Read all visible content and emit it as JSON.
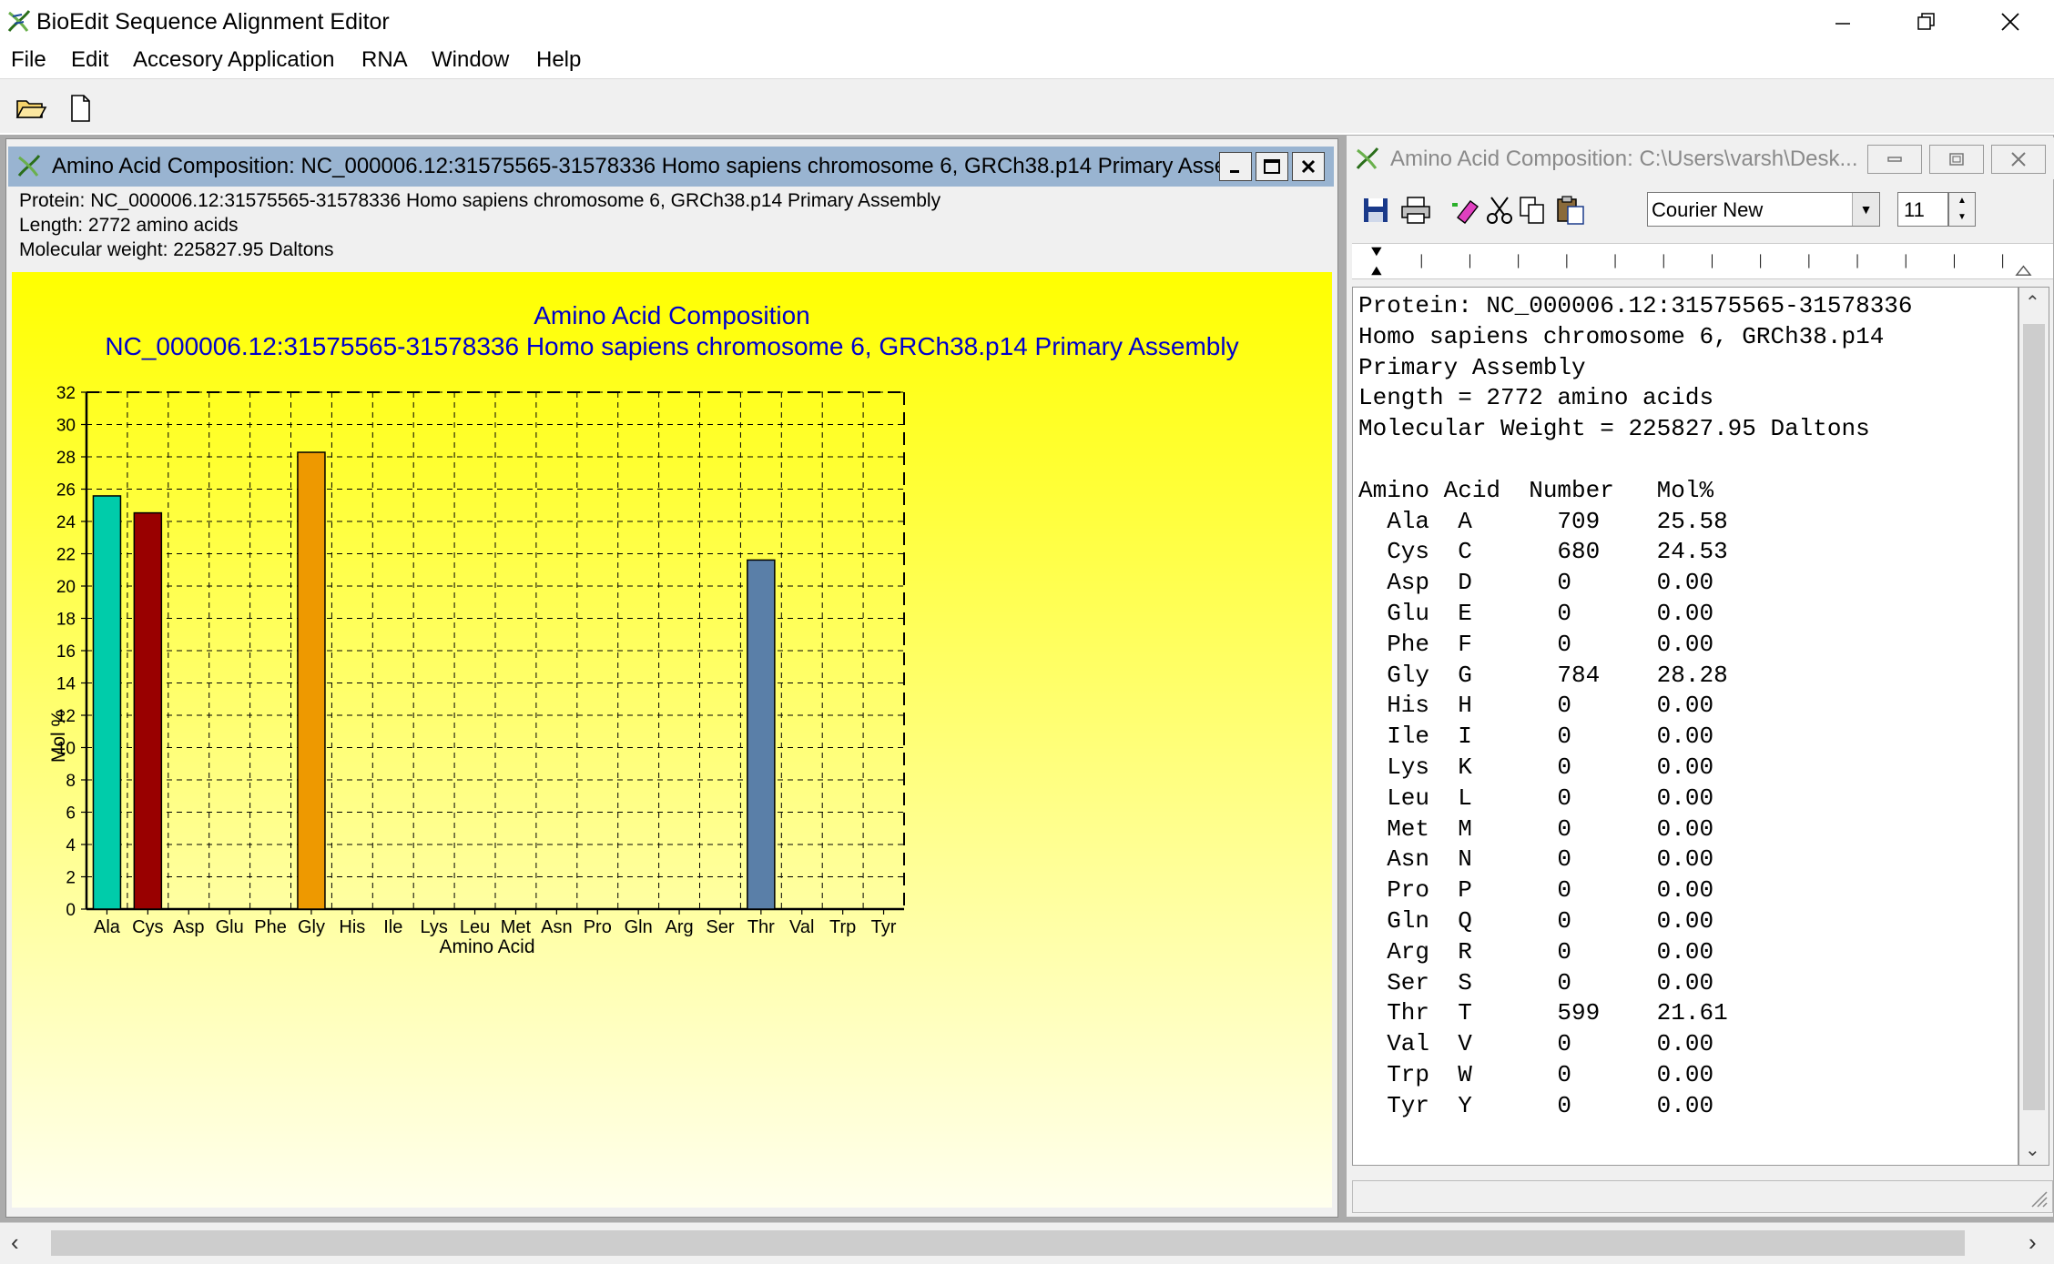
{
  "app": {
    "title": "BioEdit Sequence Alignment Editor"
  },
  "menu": [
    "File",
    "Edit",
    "Accesory Application",
    "RNA",
    "Window",
    "Help"
  ],
  "win1": {
    "title": "Amino Acid Composition: NC_000006.12:31575565-31578336 Homo sapiens chromosome 6, GRCh38.p14 Primary Asse...",
    "info_protein": "Protein: NC_000006.12:31575565-31578336 Homo sapiens chromosome 6, GRCh38.p14 Primary Assembly",
    "info_length": "Length: 2772 amino acids",
    "info_mw": "Molecular weight: 225827.95 Daltons"
  },
  "chart_data": {
    "type": "bar",
    "title": "Amino Acid Composition",
    "subtitle": "NC_000006.12:31575565-31578336 Homo sapiens chromosome 6, GRCh38.p14 Primary Assembly",
    "xlabel": "Amino Acid",
    "ylabel": "Mol %",
    "ylim": [
      0,
      32
    ],
    "yticks": [
      0,
      2,
      4,
      6,
      8,
      10,
      12,
      14,
      16,
      18,
      20,
      22,
      24,
      26,
      28,
      30,
      32
    ],
    "categories": [
      "Ala",
      "Cys",
      "Asp",
      "Glu",
      "Phe",
      "Gly",
      "His",
      "Ile",
      "Lys",
      "Leu",
      "Met",
      "Asn",
      "Pro",
      "Gln",
      "Arg",
      "Ser",
      "Thr",
      "Val",
      "Trp",
      "Tyr"
    ],
    "values": [
      25.58,
      24.53,
      0,
      0,
      0,
      28.28,
      0,
      0,
      0,
      0,
      0,
      0,
      0,
      0,
      0,
      0,
      21.61,
      0,
      0,
      0
    ],
    "colors": [
      "#00ccaa",
      "#990000",
      "#cccccc",
      "#cccccc",
      "#cccccc",
      "#ee9900",
      "#cccccc",
      "#cccccc",
      "#cccccc",
      "#cccccc",
      "#cccccc",
      "#cccccc",
      "#cccccc",
      "#cccccc",
      "#cccccc",
      "#cccccc",
      "#5a7fa8",
      "#cccccc",
      "#cccccc",
      "#cccccc"
    ],
    "grid": true
  },
  "win2": {
    "title": "Amino Acid Composition: C:\\Users\\varsh\\Desk...",
    "font": "Courier New",
    "font_size": "11",
    "report_lines": [
      "Protein: NC_000006.12:31575565-31578336",
      "Homo sapiens chromosome 6, GRCh38.p14",
      "Primary Assembly",
      "Length = 2772 amino acids",
      "Molecular Weight = 225827.95 Daltons",
      "",
      "Amino Acid  Number   Mol%",
      "  Ala  A      709    25.58",
      "  Cys  C      680    24.53",
      "  Asp  D      0      0.00",
      "  Glu  E      0      0.00",
      "  Phe  F      0      0.00",
      "  Gly  G      784    28.28",
      "  His  H      0      0.00",
      "  Ile  I      0      0.00",
      "  Lys  K      0      0.00",
      "  Leu  L      0      0.00",
      "  Met  M      0      0.00",
      "  Asn  N      0      0.00",
      "  Pro  P      0      0.00",
      "  Gln  Q      0      0.00",
      "  Arg  R      0      0.00",
      "  Ser  S      0      0.00",
      "  Thr  T      599    21.61",
      "  Val  V      0      0.00",
      "  Trp  W      0      0.00",
      "  Tyr  Y      0      0.00"
    ]
  }
}
